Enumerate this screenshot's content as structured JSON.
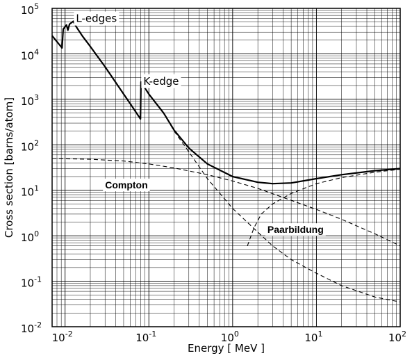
{
  "chart_data": {
    "type": "line",
    "xlabel": "Energy  [ MeV ]",
    "ylabel": "Cross section [barns/atom]",
    "xscale": "log",
    "yscale": "log",
    "xlim": [
      0.007,
      100
    ],
    "ylim": [
      0.01,
      100000
    ],
    "grid": true,
    "x_ticks": [
      {
        "value": 0.01,
        "base": "10",
        "exp": "-2"
      },
      {
        "value": 0.1,
        "base": "10",
        "exp": "-1"
      },
      {
        "value": 1,
        "base": "10",
        "exp": "0"
      },
      {
        "value": 10,
        "base": "10",
        "exp": "1"
      },
      {
        "value": 100,
        "base": "10",
        "exp": "2"
      }
    ],
    "y_ticks": [
      {
        "value": 0.01,
        "base": "10",
        "exp": "-2"
      },
      {
        "value": 0.1,
        "base": "10",
        "exp": "-1"
      },
      {
        "value": 1,
        "base": "10",
        "exp": "0"
      },
      {
        "value": 10,
        "base": "10",
        "exp": "1"
      },
      {
        "value": 100,
        "base": "10",
        "exp": "2"
      },
      {
        "value": 1000,
        "base": "10",
        "exp": "3"
      },
      {
        "value": 10000,
        "base": "10",
        "exp": "4"
      },
      {
        "value": 100000,
        "base": "10",
        "exp": "5"
      }
    ],
    "series": [
      {
        "style": "solid",
        "points": [
          [
            0.007,
            25000
          ],
          [
            0.0092,
            13500
          ],
          [
            0.0095,
            35000
          ],
          [
            0.0104,
            43000
          ],
          [
            0.0108,
            33000
          ],
          [
            0.0113,
            45000
          ],
          [
            0.0125,
            52000
          ],
          [
            0.0135,
            40000
          ],
          [
            0.016,
            25000
          ],
          [
            0.02,
            14500
          ],
          [
            0.03,
            5200
          ],
          [
            0.05,
            1300
          ],
          [
            0.06,
            800
          ],
          [
            0.0795,
            370
          ],
          [
            0.0805,
            2400
          ],
          [
            0.1,
            1300
          ],
          [
            0.15,
            500
          ],
          [
            0.2,
            210
          ],
          [
            0.3,
            85
          ],
          [
            0.5,
            38
          ],
          [
            1,
            20
          ],
          [
            2,
            15
          ],
          [
            3,
            14
          ],
          [
            5,
            14.5
          ],
          [
            10,
            18
          ],
          [
            20,
            22
          ],
          [
            50,
            27
          ],
          [
            100,
            30
          ]
        ]
      },
      {
        "style": "dashed",
        "points": [
          [
            0.007,
            50
          ],
          [
            0.02,
            48
          ],
          [
            0.05,
            44
          ],
          [
            0.1,
            38
          ],
          [
            0.2,
            31
          ],
          [
            0.5,
            22
          ],
          [
            1,
            16
          ],
          [
            2,
            11
          ],
          [
            5,
            6
          ],
          [
            10,
            3.8
          ],
          [
            20,
            2.3
          ],
          [
            50,
            1.1
          ],
          [
            100,
            0.6
          ]
        ]
      },
      {
        "style": "dashed",
        "points": [
          [
            0.15,
            500
          ],
          [
            0.2,
            200
          ],
          [
            0.3,
            70
          ],
          [
            0.5,
            18
          ],
          [
            1,
            4
          ],
          [
            2,
            1.2
          ],
          [
            3,
            0.6
          ],
          [
            5,
            0.3
          ],
          [
            10,
            0.15
          ],
          [
            20,
            0.08
          ],
          [
            50,
            0.045
          ],
          [
            100,
            0.035
          ]
        ]
      },
      {
        "style": "dashed",
        "points": [
          [
            1.5,
            0.6
          ],
          [
            1.8,
            1.5
          ],
          [
            2.2,
            3
          ],
          [
            3,
            5
          ],
          [
            5,
            8.5
          ],
          [
            10,
            14
          ],
          [
            20,
            19
          ],
          [
            50,
            25
          ],
          [
            100,
            29
          ]
        ]
      }
    ],
    "annotations": [
      {
        "text": "L-edges",
        "weight": "normal",
        "x": 0.0135,
        "y": 50000
      },
      {
        "text": "K-edge",
        "weight": "normal",
        "x": 0.086,
        "y": 2100
      },
      {
        "text": "Compton",
        "weight": "bold",
        "x": 0.03,
        "y": 11
      },
      {
        "text": "Paarbildung",
        "weight": "bold",
        "x": 2.6,
        "y": 1.15
      }
    ]
  }
}
